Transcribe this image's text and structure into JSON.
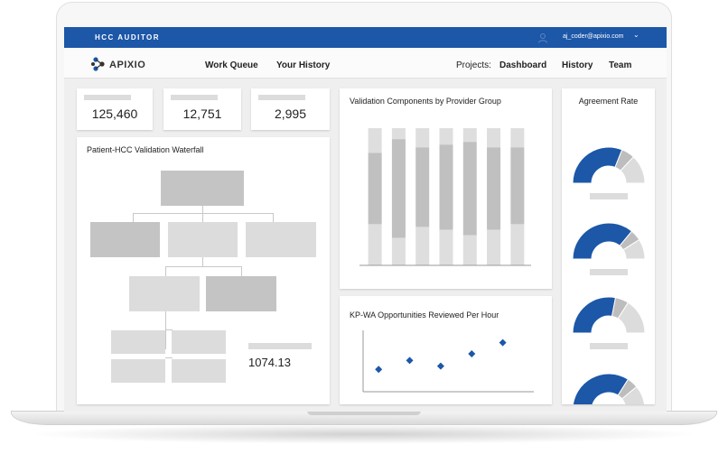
{
  "header": {
    "app_title": "HCC AUDITOR",
    "user_email": "aj_coder@apixio.com",
    "user_icon": "user-icon",
    "dropdown_icon": "chevron-down-icon"
  },
  "nav": {
    "logo_text": "APIXIO",
    "work_queue": "Work Queue",
    "your_history": "Your History",
    "projects_label": "Projects:",
    "dashboard": "Dashboard",
    "history": "History",
    "team": "Team"
  },
  "stats": [
    {
      "value": "125,460"
    },
    {
      "value": "12,751"
    },
    {
      "value": "2,995"
    }
  ],
  "waterfall": {
    "title": "Patient-HCC Validation Waterfall",
    "value": "1074.13"
  },
  "validation_chart": {
    "title": "Validation Components by Provider Group"
  },
  "opportunities_chart": {
    "title": "KP-WA Opportunities Reviewed Per Hour"
  },
  "agreement": {
    "title": "Agreement Rate"
  },
  "colors": {
    "brand_blue": "#1c57a8",
    "bar_dark": "#bdbdbd",
    "bar_light": "#dddddd"
  },
  "chart_data": [
    {
      "type": "bar",
      "stacked": true,
      "categories": [
        "",
        "",
        "",
        "",
        "",
        "",
        ""
      ],
      "series": [
        {
          "values": [
            18,
            8,
            14,
            12,
            10,
            14,
            14
          ]
        },
        {
          "values": [
            52,
            72,
            58,
            62,
            68,
            60,
            56
          ]
        },
        {
          "values": [
            30,
            20,
            28,
            26,
            22,
            26,
            30
          ]
        }
      ],
      "ylim": [
        0,
        100
      ],
      "grid": false
    },
    {
      "type": "scatter",
      "x": [
        1,
        2,
        3,
        4,
        5
      ],
      "y": [
        1.0,
        1.8,
        1.3,
        2.4,
        3.4
      ],
      "xlim": [
        0.5,
        6
      ],
      "ylim": [
        -1,
        4.5
      ],
      "grid": false
    },
    {
      "type": "pie",
      "gauge": true,
      "gauges": [
        {
          "values": [
            62,
            12,
            26
          ]
        },
        {
          "values": [
            72,
            10,
            18
          ]
        },
        {
          "values": [
            56,
            12,
            32
          ]
        },
        {
          "values": [
            68,
            10,
            22
          ]
        }
      ]
    }
  ]
}
